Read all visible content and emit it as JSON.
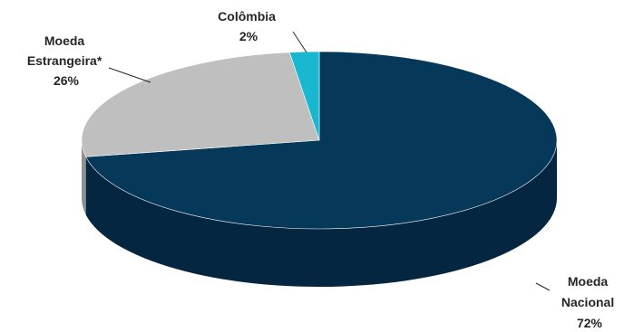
{
  "chart_data": {
    "type": "pie",
    "title": "",
    "slices": [
      {
        "name_lines": [
          "Moeda",
          "Nacional"
        ],
        "value_label": "72%",
        "value": 72,
        "color": "#063859",
        "side_color": "#042640"
      },
      {
        "name_lines": [
          "Moeda",
          "Estrangeira*"
        ],
        "value_label": "26%",
        "value": 26,
        "color": "#bfbfbf",
        "side_color": "#8f8f8f"
      },
      {
        "name_lines": [
          "Colômbia"
        ],
        "value_label": "2%",
        "value": 2,
        "color": "#1ab8d0",
        "side_color": "#128799"
      }
    ],
    "legend": "none"
  }
}
